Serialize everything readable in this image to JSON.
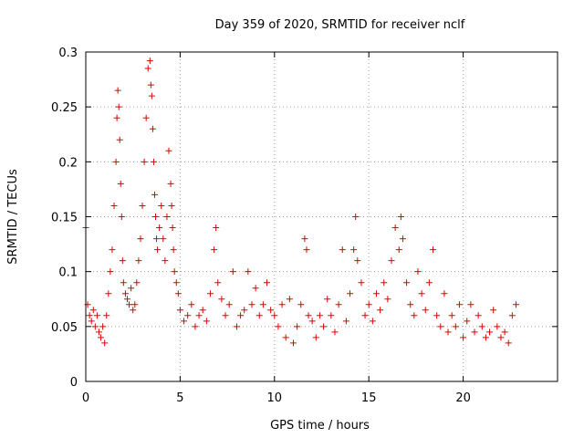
{
  "chart_data": {
    "type": "scatter",
    "title": "Day 359 of 2020, SRMTID for receiver nclf",
    "xlabel": "GPS time / hours",
    "ylabel": "SRMTID / TECUs",
    "xlim": [
      0,
      25
    ],
    "ylim": [
      0,
      0.3
    ],
    "x_ticks": [
      "0",
      "5",
      "10",
      "15",
      "20"
    ],
    "y_ticks": [
      "0",
      "0.05",
      "0.1",
      "0.15",
      "0.2",
      "0.25",
      "0.3"
    ],
    "grid": true,
    "marker": "plus",
    "colors": {
      "series": "#e00000",
      "grid": "#a0a0a0"
    },
    "series": [
      {
        "x": [
          0.0,
          0.1,
          0.2,
          0.3,
          0.4,
          0.5,
          0.6,
          0.7,
          0.8,
          0.9,
          1.0,
          1.1,
          1.2,
          1.3,
          1.4,
          1.5,
          1.6,
          1.65,
          1.7,
          1.75,
          1.8,
          1.85,
          1.9,
          1.95,
          2.0,
          2.1,
          2.2,
          2.3,
          2.4,
          2.5,
          2.6,
          2.7,
          2.8,
          2.9,
          3.0,
          3.1,
          3.2,
          3.3,
          3.4,
          3.45,
          3.5,
          3.55,
          3.6,
          3.65,
          3.7,
          3.75,
          3.8,
          3.9,
          4.0,
          4.1,
          4.2,
          4.3,
          4.4,
          4.5,
          4.55,
          4.6,
          4.65,
          4.7,
          4.8,
          4.9,
          5.0,
          5.2,
          5.4,
          5.6,
          5.8,
          6.0,
          6.2,
          6.4,
          6.6,
          6.8,
          6.9,
          7.0,
          7.2,
          7.4,
          7.6,
          7.8,
          8.0,
          8.2,
          8.4,
          8.6,
          8.8,
          9.0,
          9.2,
          9.4,
          9.6,
          9.8,
          10.0,
          10.2,
          10.4,
          10.6,
          10.8,
          11.0,
          11.2,
          11.4,
          11.6,
          11.7,
          11.8,
          12.0,
          12.2,
          12.4,
          12.6,
          12.8,
          13.0,
          13.2,
          13.4,
          13.6,
          13.8,
          14.0,
          14.2,
          14.3,
          14.4,
          14.6,
          14.8,
          15.0,
          15.2,
          15.4,
          15.6,
          15.8,
          16.0,
          16.2,
          16.4,
          16.6,
          16.7,
          16.8,
          17.0,
          17.2,
          17.4,
          17.6,
          17.8,
          18.0,
          18.2,
          18.4,
          18.6,
          18.8,
          19.0,
          19.2,
          19.4,
          19.6,
          19.8,
          20.0,
          20.2,
          20.4,
          20.6,
          20.8,
          21.0,
          21.2,
          21.4,
          21.6,
          21.8,
          22.0,
          22.2,
          22.4,
          22.6,
          22.8
        ],
        "y": [
          0.14,
          0.07,
          0.06,
          0.055,
          0.065,
          0.05,
          0.06,
          0.045,
          0.04,
          0.05,
          0.035,
          0.06,
          0.08,
          0.1,
          0.12,
          0.16,
          0.2,
          0.24,
          0.265,
          0.25,
          0.22,
          0.18,
          0.15,
          0.11,
          0.09,
          0.08,
          0.075,
          0.07,
          0.085,
          0.065,
          0.07,
          0.09,
          0.11,
          0.13,
          0.16,
          0.2,
          0.24,
          0.285,
          0.292,
          0.27,
          0.26,
          0.23,
          0.2,
          0.17,
          0.15,
          0.13,
          0.12,
          0.14,
          0.16,
          0.13,
          0.11,
          0.15,
          0.21,
          0.18,
          0.16,
          0.14,
          0.12,
          0.1,
          0.09,
          0.08,
          0.065,
          0.055,
          0.06,
          0.07,
          0.05,
          0.06,
          0.065,
          0.055,
          0.08,
          0.12,
          0.14,
          0.09,
          0.075,
          0.06,
          0.07,
          0.1,
          0.05,
          0.06,
          0.065,
          0.1,
          0.07,
          0.085,
          0.06,
          0.07,
          0.09,
          0.065,
          0.06,
          0.05,
          0.07,
          0.04,
          0.075,
          0.035,
          0.05,
          0.07,
          0.13,
          0.12,
          0.06,
          0.055,
          0.04,
          0.06,
          0.05,
          0.075,
          0.06,
          0.045,
          0.07,
          0.12,
          0.055,
          0.08,
          0.12,
          0.15,
          0.11,
          0.09,
          0.06,
          0.07,
          0.055,
          0.08,
          0.065,
          0.09,
          0.075,
          0.11,
          0.14,
          0.12,
          0.15,
          0.13,
          0.09,
          0.07,
          0.06,
          0.1,
          0.08,
          0.065,
          0.09,
          0.12,
          0.06,
          0.05,
          0.08,
          0.045,
          0.06,
          0.05,
          0.07,
          0.04,
          0.055,
          0.07,
          0.045,
          0.06,
          0.05,
          0.04,
          0.045,
          0.065,
          0.05,
          0.04,
          0.045,
          0.035,
          0.06,
          0.07
        ]
      }
    ]
  }
}
